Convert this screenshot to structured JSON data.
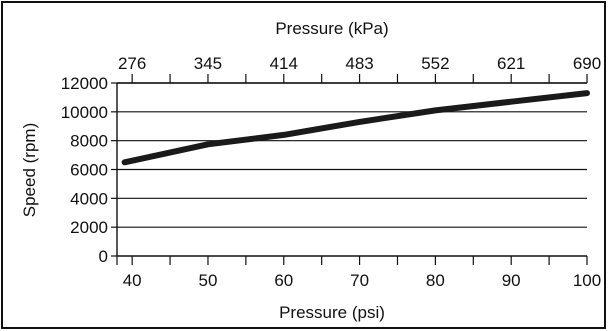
{
  "chart_data": {
    "type": "line",
    "title": "",
    "xlabel": "Pressure (psi)",
    "ylabel": "Speed (rpm)",
    "x2label": "Pressure (kPa)",
    "xlim": [
      38,
      100
    ],
    "ylim": [
      0,
      12000
    ],
    "x_ticks": [
      40,
      50,
      60,
      70,
      80,
      90,
      100
    ],
    "x_tick_labels": [
      "40",
      "50",
      "60",
      "70",
      "80",
      "90",
      "100"
    ],
    "x2_tick_positions": [
      40,
      50,
      60,
      70,
      80,
      90,
      100
    ],
    "x2_tick_labels": [
      "276",
      "345",
      "414",
      "483",
      "552",
      "621",
      "690"
    ],
    "y_ticks": [
      0,
      2000,
      4000,
      6000,
      8000,
      10000,
      12000
    ],
    "y_tick_labels": [
      "0",
      "2000",
      "4000",
      "6000",
      "8000",
      "10000",
      "12000"
    ],
    "grid": "horizontal",
    "series": [
      {
        "color": "#1a1a1a",
        "x": [
          39,
          50,
          60,
          70,
          80,
          90,
          100
        ],
        "y": [
          6500,
          7750,
          8400,
          9300,
          10100,
          10700,
          11300
        ]
      }
    ]
  }
}
